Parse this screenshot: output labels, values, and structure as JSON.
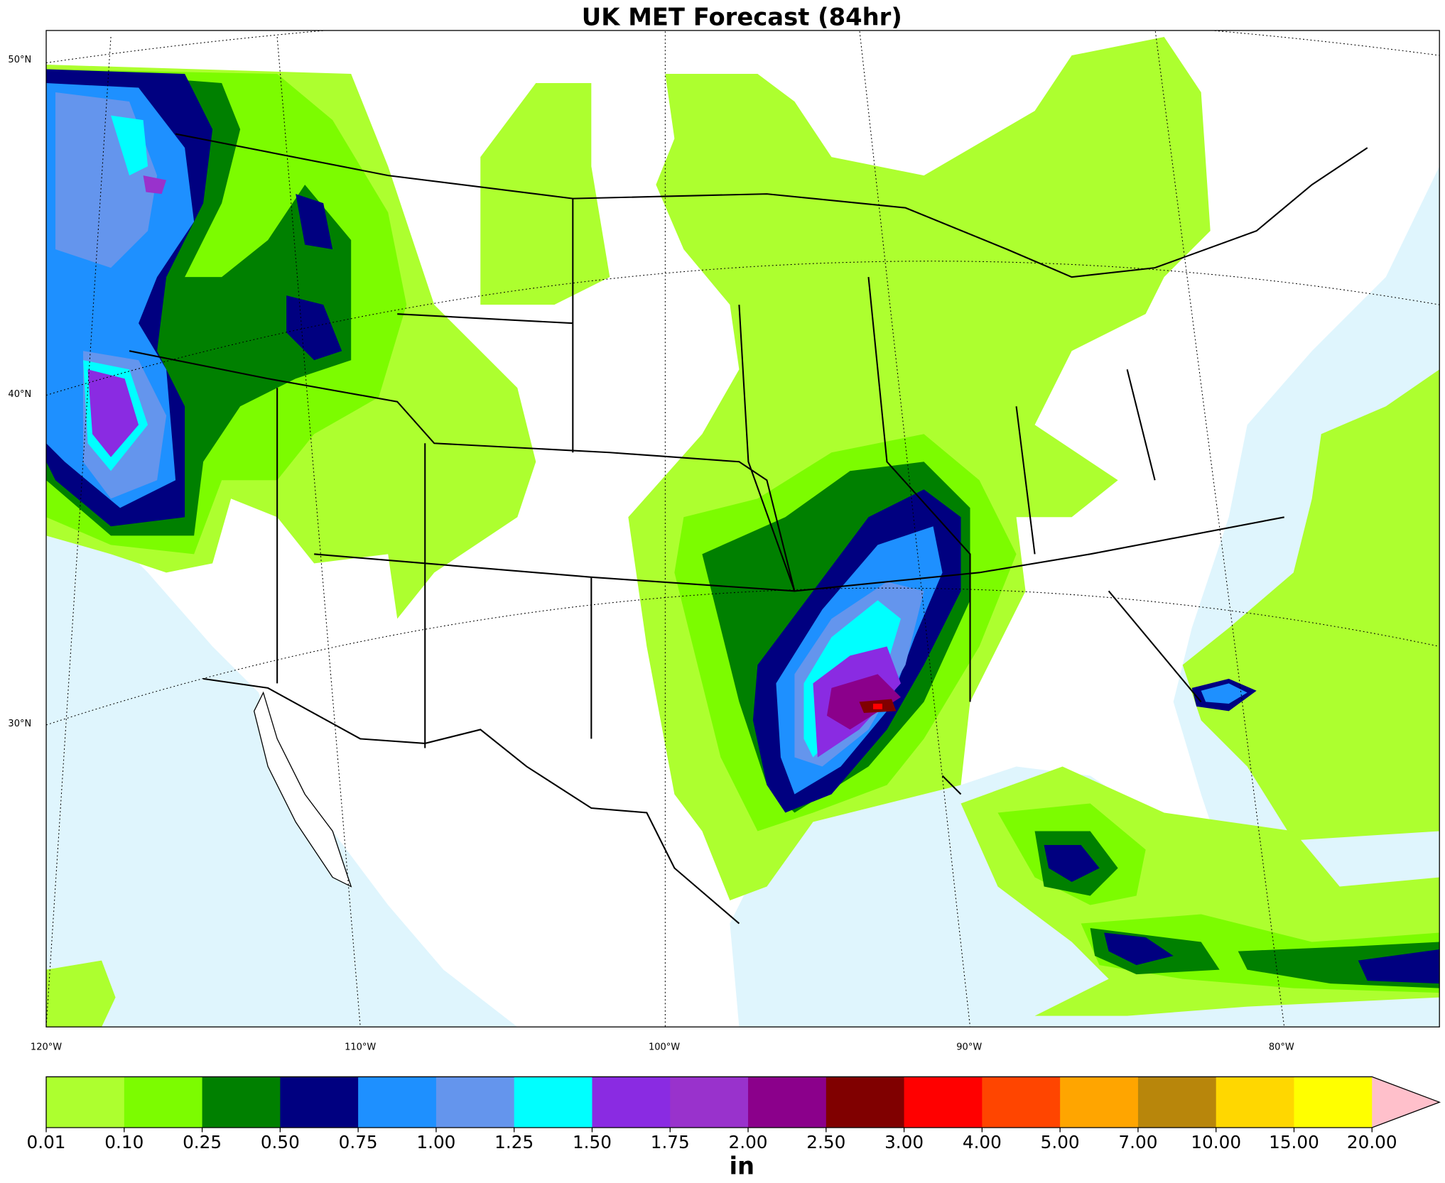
{
  "title": "UK MET Forecast (84hr)",
  "map": {
    "lat_labels": [
      "50°N",
      "40°N",
      "30°N"
    ],
    "lon_labels": [
      "120°W",
      "110°W",
      "100°W",
      "90°W",
      "80°W"
    ]
  },
  "colorbar": {
    "levels": [
      0.01,
      {
        "value": 0.1,
        "label": "0.10"
      },
      0.25,
      {
        "value": 0.5,
        "label": "0.50"
      },
      0.75,
      {
        "value": 1,
        "label": "1.00"
      },
      1.25,
      {
        "value": 1.5,
        "label": "1.50"
      },
      1.75,
      {
        "value": 2,
        "label": "2.00"
      },
      {
        "value": 2.5,
        "label": "2.50"
      },
      {
        "value": 3,
        "label": "3.00"
      },
      {
        "value": 4,
        "label": "4.00"
      },
      {
        "value": 5,
        "label": "5.00"
      },
      {
        "value": 7,
        "label": "7.00"
      },
      {
        "value": 10,
        "label": "10.00"
      },
      {
        "value": 15,
        "label": "15.00"
      },
      {
        "value": 20,
        "label": "20.00"
      }
    ],
    "colors": [
      "#adff2f",
      "#7cfc00",
      "#008000",
      "#000080",
      "#1e90ff",
      "#6495ed",
      "#00ffff",
      "#8a2be2",
      "#9932cc",
      "#8b008b",
      "#800000",
      "#ff0000",
      "#ff4500",
      "#ffa500",
      "#b8860b",
      "#ffd700",
      "#ffff00"
    ],
    "extend_color": "#ffc0cb",
    "label": "in"
  }
}
